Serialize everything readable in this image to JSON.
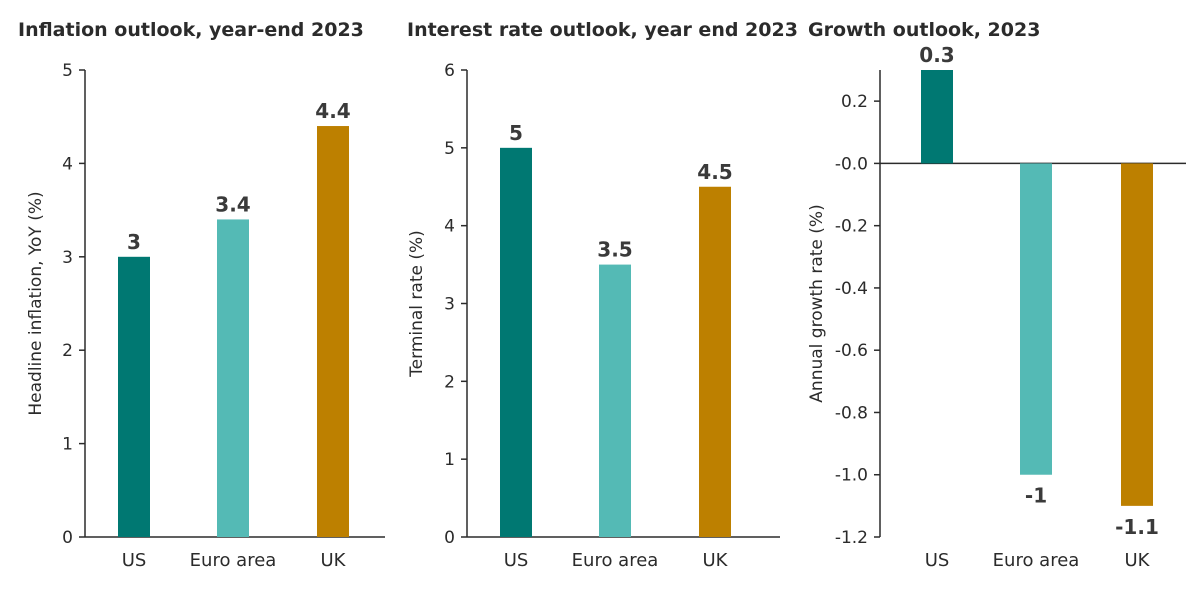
{
  "chart_data": [
    {
      "type": "bar",
      "title": "Inflation outlook, year-end 2023",
      "ylabel": "Headline inflation, YoY (%)",
      "xlabel": "",
      "categories": [
        "US",
        "Euro area",
        "UK"
      ],
      "values": [
        3,
        3.4,
        4.4
      ],
      "data_labels": [
        "3",
        "3.4",
        "4.4"
      ],
      "ylim": [
        0,
        5
      ],
      "yticks": [
        0,
        1,
        2,
        3,
        4,
        5
      ],
      "ytick_labels": [
        "0",
        "1",
        "2",
        "3",
        "4",
        "5"
      ],
      "colors": [
        "#007872",
        "#54BAB5",
        "#BD8000"
      ],
      "grid": false,
      "legend": "none"
    },
    {
      "type": "bar",
      "title": "Interest rate outlook, year end 2023",
      "ylabel": "Terminal rate (%)",
      "xlabel": "",
      "categories": [
        "US",
        "Euro area",
        "UK"
      ],
      "values": [
        5,
        3.5,
        4.5
      ],
      "data_labels": [
        "5",
        "3.5",
        "4.5"
      ],
      "ylim": [
        0,
        6
      ],
      "yticks": [
        0,
        1,
        2,
        3,
        4,
        5,
        6
      ],
      "ytick_labels": [
        "0",
        "1",
        "2",
        "3",
        "4",
        "5",
        "6"
      ],
      "colors": [
        "#007872",
        "#54BAB5",
        "#BD8000"
      ],
      "grid": false,
      "legend": "none"
    },
    {
      "type": "bar",
      "title": "Growth outlook, 2023",
      "ylabel": "Annual growth rate (%)",
      "xlabel": "",
      "categories": [
        "US",
        "Euro area",
        "UK"
      ],
      "values": [
        0.3,
        -1,
        -1.1
      ],
      "data_labels": [
        "0.3",
        "-1",
        "-1.1"
      ],
      "ylim": [
        -1.2,
        0.3
      ],
      "yticks": [
        0.2,
        0.0,
        -0.2,
        -0.4,
        -0.6,
        -0.8,
        -1.0,
        -1.2
      ],
      "ytick_labels": [
        "0.2",
        "-0.0",
        "-0.2",
        "-0.4",
        "-0.6",
        "-0.8",
        "-1.0",
        "-1.2"
      ],
      "colors": [
        "#007872",
        "#54BAB5",
        "#BD8000"
      ],
      "grid": false,
      "legend": "none"
    }
  ]
}
